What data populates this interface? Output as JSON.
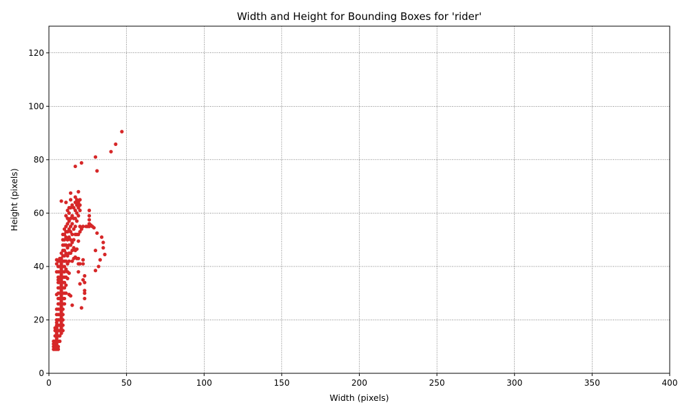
{
  "chart_data": {
    "type": "scatter",
    "title": "Width and Height for Bounding Boxes for 'rider'",
    "xlabel": "Width (pixels)",
    "ylabel": "Height (pixels)",
    "xlim": [
      0,
      400
    ],
    "ylim": [
      0,
      130
    ],
    "xticks": [
      "0",
      "50",
      "100",
      "150",
      "200",
      "250",
      "300",
      "350",
      "400"
    ],
    "yticks": [
      "0",
      "20",
      "40",
      "60",
      "80",
      "100",
      "120"
    ],
    "grid": true,
    "marker_color": "#d62728",
    "series": [
      {
        "points": [
          [
            3,
            9
          ],
          [
            3,
            10
          ],
          [
            3,
            11
          ],
          [
            3,
            12
          ],
          [
            4,
            9
          ],
          [
            4,
            10
          ],
          [
            4,
            11
          ],
          [
            4,
            12
          ],
          [
            4,
            14
          ],
          [
            4,
            16
          ],
          [
            4,
            17
          ],
          [
            5,
            9
          ],
          [
            5,
            10
          ],
          [
            5,
            11
          ],
          [
            5,
            12
          ],
          [
            5,
            13
          ],
          [
            5,
            14
          ],
          [
            5,
            15
          ],
          [
            5,
            16
          ],
          [
            5,
            17
          ],
          [
            5,
            18
          ],
          [
            5,
            19
          ],
          [
            5,
            20
          ],
          [
            5,
            22
          ],
          [
            5,
            24
          ],
          [
            5,
            29.5
          ],
          [
            5,
            38
          ],
          [
            5,
            41
          ],
          [
            5,
            42.5
          ],
          [
            6,
            9
          ],
          [
            6,
            10
          ],
          [
            6,
            12
          ],
          [
            6,
            14
          ],
          [
            6,
            16
          ],
          [
            6,
            18
          ],
          [
            6,
            20
          ],
          [
            6,
            22
          ],
          [
            6,
            24
          ],
          [
            6,
            26
          ],
          [
            6,
            28
          ],
          [
            6,
            30
          ],
          [
            6,
            32
          ],
          [
            6,
            34
          ],
          [
            6,
            35
          ],
          [
            6,
            36
          ],
          [
            6,
            38
          ],
          [
            6,
            40
          ],
          [
            6,
            42
          ],
          [
            7,
            12
          ],
          [
            7,
            14
          ],
          [
            7,
            16
          ],
          [
            7,
            18
          ],
          [
            7,
            20
          ],
          [
            7,
            22
          ],
          [
            7,
            24
          ],
          [
            7,
            26
          ],
          [
            7,
            28
          ],
          [
            7,
            30
          ],
          [
            7,
            32
          ],
          [
            7,
            34
          ],
          [
            7,
            36
          ],
          [
            7,
            38
          ],
          [
            7,
            40
          ],
          [
            7,
            42
          ],
          [
            7,
            43
          ],
          [
            8,
            15
          ],
          [
            8,
            17
          ],
          [
            8,
            19
          ],
          [
            8,
            21
          ],
          [
            8,
            23
          ],
          [
            8,
            25
          ],
          [
            8,
            27
          ],
          [
            8,
            29
          ],
          [
            8,
            31
          ],
          [
            8,
            33
          ],
          [
            8,
            35
          ],
          [
            8,
            37
          ],
          [
            8,
            39
          ],
          [
            8,
            41
          ],
          [
            8,
            43
          ],
          [
            8,
            45
          ],
          [
            8,
            64.5
          ],
          [
            9,
            16
          ],
          [
            9,
            18
          ],
          [
            9,
            20
          ],
          [
            9,
            22
          ],
          [
            9,
            24
          ],
          [
            9,
            26
          ],
          [
            9,
            28
          ],
          [
            9,
            30
          ],
          [
            9,
            32
          ],
          [
            9,
            34
          ],
          [
            9,
            36
          ],
          [
            9,
            38
          ],
          [
            9,
            40
          ],
          [
            9,
            42
          ],
          [
            9,
            44
          ],
          [
            9,
            46
          ],
          [
            9,
            48
          ],
          [
            9,
            50
          ],
          [
            9,
            52
          ],
          [
            10,
            26
          ],
          [
            10,
            28
          ],
          [
            10,
            30
          ],
          [
            10,
            32
          ],
          [
            10,
            34
          ],
          [
            10,
            36
          ],
          [
            10,
            38
          ],
          [
            10,
            40
          ],
          [
            10,
            42
          ],
          [
            10,
            44
          ],
          [
            10,
            46
          ],
          [
            10,
            48
          ],
          [
            10,
            50
          ],
          [
            10,
            52
          ],
          [
            10,
            54
          ],
          [
            11,
            30
          ],
          [
            11,
            33
          ],
          [
            11,
            36
          ],
          [
            11,
            39
          ],
          [
            11,
            42
          ],
          [
            11,
            45
          ],
          [
            11,
            48
          ],
          [
            11,
            51
          ],
          [
            11,
            53
          ],
          [
            11,
            55
          ],
          [
            11,
            59
          ],
          [
            11,
            64
          ],
          [
            12,
            35.5
          ],
          [
            12,
            38
          ],
          [
            12,
            41
          ],
          [
            12,
            44
          ],
          [
            12,
            47
          ],
          [
            12,
            50
          ],
          [
            12,
            53
          ],
          [
            12,
            56
          ],
          [
            12,
            58
          ],
          [
            12,
            61
          ],
          [
            13,
            29.5
          ],
          [
            13,
            37.5
          ],
          [
            13,
            42
          ],
          [
            13,
            45
          ],
          [
            13,
            48
          ],
          [
            13,
            51
          ],
          [
            13,
            54
          ],
          [
            13,
            57
          ],
          [
            13,
            60
          ],
          [
            13,
            62
          ],
          [
            14,
            29
          ],
          [
            14,
            45
          ],
          [
            14,
            48
          ],
          [
            14,
            50
          ],
          [
            14,
            53
          ],
          [
            14,
            55
          ],
          [
            14,
            58
          ],
          [
            14,
            62
          ],
          [
            14,
            65
          ],
          [
            14,
            67.5
          ],
          [
            15,
            25.5
          ],
          [
            15,
            42
          ],
          [
            15,
            46
          ],
          [
            15,
            49
          ],
          [
            15,
            52
          ],
          [
            15,
            56
          ],
          [
            15,
            59
          ],
          [
            15,
            63
          ],
          [
            16,
            43
          ],
          [
            16,
            47
          ],
          [
            16,
            50
          ],
          [
            16,
            54
          ],
          [
            16,
            58
          ],
          [
            16,
            62
          ],
          [
            17,
            43.5
          ],
          [
            17,
            46
          ],
          [
            17,
            52
          ],
          [
            17,
            55
          ],
          [
            17,
            58
          ],
          [
            17,
            61
          ],
          [
            17,
            64
          ],
          [
            17,
            66
          ],
          [
            17,
            77.5
          ],
          [
            18,
            43
          ],
          [
            18,
            46.5
          ],
          [
            18,
            52
          ],
          [
            18,
            57
          ],
          [
            18,
            60
          ],
          [
            18,
            63
          ],
          [
            18,
            65
          ],
          [
            19,
            38
          ],
          [
            19,
            41
          ],
          [
            19,
            43
          ],
          [
            19,
            49.5
          ],
          [
            19,
            52
          ],
          [
            19,
            59
          ],
          [
            19,
            62
          ],
          [
            19,
            64
          ],
          [
            19,
            68
          ],
          [
            20,
            33.5
          ],
          [
            20,
            41
          ],
          [
            20,
            53
          ],
          [
            20,
            55
          ],
          [
            20,
            61
          ],
          [
            20,
            63
          ],
          [
            20,
            65
          ],
          [
            21,
            24.5
          ],
          [
            21,
            54
          ],
          [
            21,
            78.8
          ],
          [
            22,
            35
          ],
          [
            22,
            41
          ],
          [
            22,
            42.5
          ],
          [
            22,
            55
          ],
          [
            23,
            28
          ],
          [
            23,
            30
          ],
          [
            23,
            31
          ],
          [
            23,
            34
          ],
          [
            23,
            36.5
          ],
          [
            24,
            55
          ],
          [
            25,
            55
          ],
          [
            26,
            55
          ],
          [
            26,
            56
          ],
          [
            26,
            57.5
          ],
          [
            26,
            59
          ],
          [
            26,
            61
          ],
          [
            27,
            55.5
          ],
          [
            28,
            55
          ],
          [
            29,
            54.5
          ],
          [
            30,
            38.5
          ],
          [
            30,
            46
          ],
          [
            30,
            81
          ],
          [
            31,
            52.5
          ],
          [
            31,
            75.8
          ],
          [
            32,
            40
          ],
          [
            33,
            42.5
          ],
          [
            34,
            51
          ],
          [
            35,
            49
          ],
          [
            35,
            47
          ],
          [
            36,
            44.5
          ],
          [
            40,
            83
          ],
          [
            43,
            85.8
          ],
          [
            47,
            90.5
          ]
        ]
      }
    ]
  }
}
